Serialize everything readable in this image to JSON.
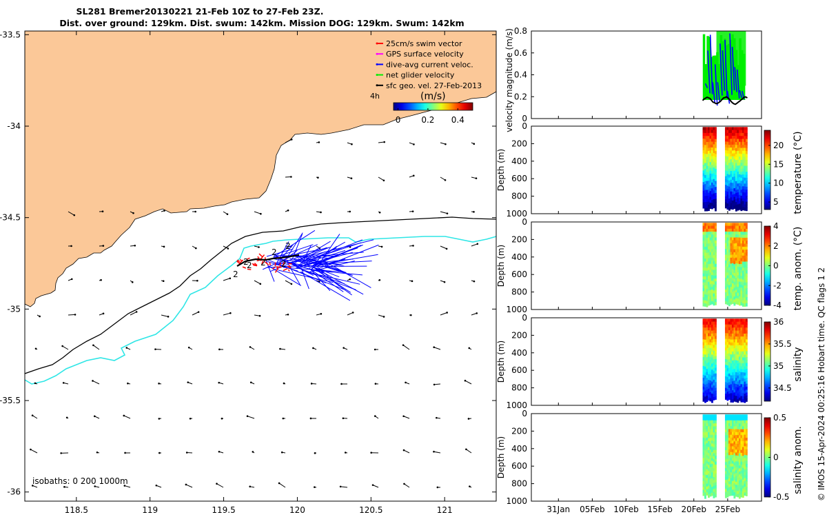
{
  "colors": {
    "land": "#fbc898",
    "map_bg": "#ffffff",
    "isobath_200": "#000000",
    "isobath_1000": "#2ee6e6",
    "swim": "#ff0000",
    "gps": "#ff00ff",
    "dive_avg": "#0000ff",
    "net": "#00ee00",
    "geo": "#000000"
  },
  "title": {
    "line1": "SL281 Bremer20130221 21-Feb 10Z to 27-Feb 23Z.",
    "line2": "Dist. over ground: 129km. Dist. swum: 142km. Mission DOG: 129km. Swum: 142km"
  },
  "map": {
    "lat_ticks": [
      "-33.5",
      "-34",
      "-34.5",
      "-35",
      "-35.5",
      "-36"
    ],
    "lat_values": [
      -33.5,
      -34,
      -34.5,
      -35,
      -35.5,
      -36
    ],
    "lon_ticks": [
      "118.5",
      "119",
      "119.5",
      "120",
      "120.5",
      "121"
    ],
    "lon_values": [
      118.5,
      119,
      119.5,
      120,
      120.5,
      121
    ],
    "lon_range": [
      118.15,
      121.35
    ],
    "lat_range": [
      -36.05,
      -33.48
    ],
    "legend": [
      {
        "label": "25cm/s swim vector",
        "color": "#ff0000"
      },
      {
        "label": "GPS surface velocity",
        "color": "#ff00ff"
      },
      {
        "label": "dive-avg current veloc.",
        "color": "#0000ff"
      },
      {
        "label": "net glider velocity",
        "color": "#00ee00"
      },
      {
        "label": "sfc geo. vel. 27-Feb-2013",
        "color": "#000000"
      }
    ],
    "time_label": "4h",
    "colorbar_title": "(m/s)",
    "colorbar_ticks": [
      "0",
      "0.2",
      "0.4"
    ],
    "colorbar_range": [
      -0.03,
      0.5
    ],
    "isobath_label": "isobaths: 0   200  1000m",
    "day_markers": [
      "2",
      "2",
      "2",
      "2",
      "2",
      "2",
      "2"
    ]
  },
  "panels": {
    "x_ticks": [
      "31Jan",
      "05Feb",
      "10Feb",
      "15Feb",
      "20Feb",
      "25Feb"
    ],
    "x_day_values": [
      0,
      5,
      10,
      15,
      20,
      25
    ],
    "x_range_days": [
      -4,
      30
    ],
    "velocity": {
      "ylabel": "velocity magnitude (m/s)",
      "y_ticks": [
        "0",
        "0.2",
        "0.4",
        "0.6",
        "0.8"
      ],
      "y_values": [
        0,
        0.2,
        0.4,
        0.6,
        0.8
      ],
      "ylim": [
        0,
        0.8
      ]
    },
    "depth_ticks": [
      "0",
      "200",
      "400",
      "600",
      "800",
      "1000"
    ],
    "depth_values": [
      0,
      200,
      400,
      600,
      800,
      1000
    ],
    "depth_ylabel": "Depth (m)",
    "sections": [
      {
        "key": "temperature",
        "label": "temperature (°C)",
        "cb_ticks": [
          "5",
          "10",
          "15",
          "20"
        ],
        "cb_values": [
          5,
          10,
          15,
          20
        ],
        "cb_range": [
          3,
          24
        ]
      },
      {
        "key": "temp_anom",
        "label": "temp. anom. (°C)",
        "cb_ticks": [
          "4",
          "2",
          "0",
          "-2",
          "-4"
        ],
        "cb_values": [
          4,
          2,
          0,
          -2,
          -4
        ],
        "cb_range": [
          -4,
          4
        ]
      },
      {
        "key": "salinity",
        "label": "salinity",
        "cb_ticks": [
          "36",
          "35.5",
          "35",
          "34.5"
        ],
        "cb_values": [
          36,
          35.5,
          35,
          34.5
        ],
        "cb_range": [
          34.2,
          36
        ]
      },
      {
        "key": "sal_anom",
        "label": "salinity anom.",
        "cb_ticks": [
          "0.5",
          "0",
          "-0.5"
        ],
        "cb_values": [
          0.5,
          0,
          -0.5
        ],
        "cb_range": [
          -0.5,
          0.5
        ]
      }
    ]
  },
  "footer": "© IMOS 15-Apr-2024 00:25:16 Hobart time. QC flags 1  2"
}
